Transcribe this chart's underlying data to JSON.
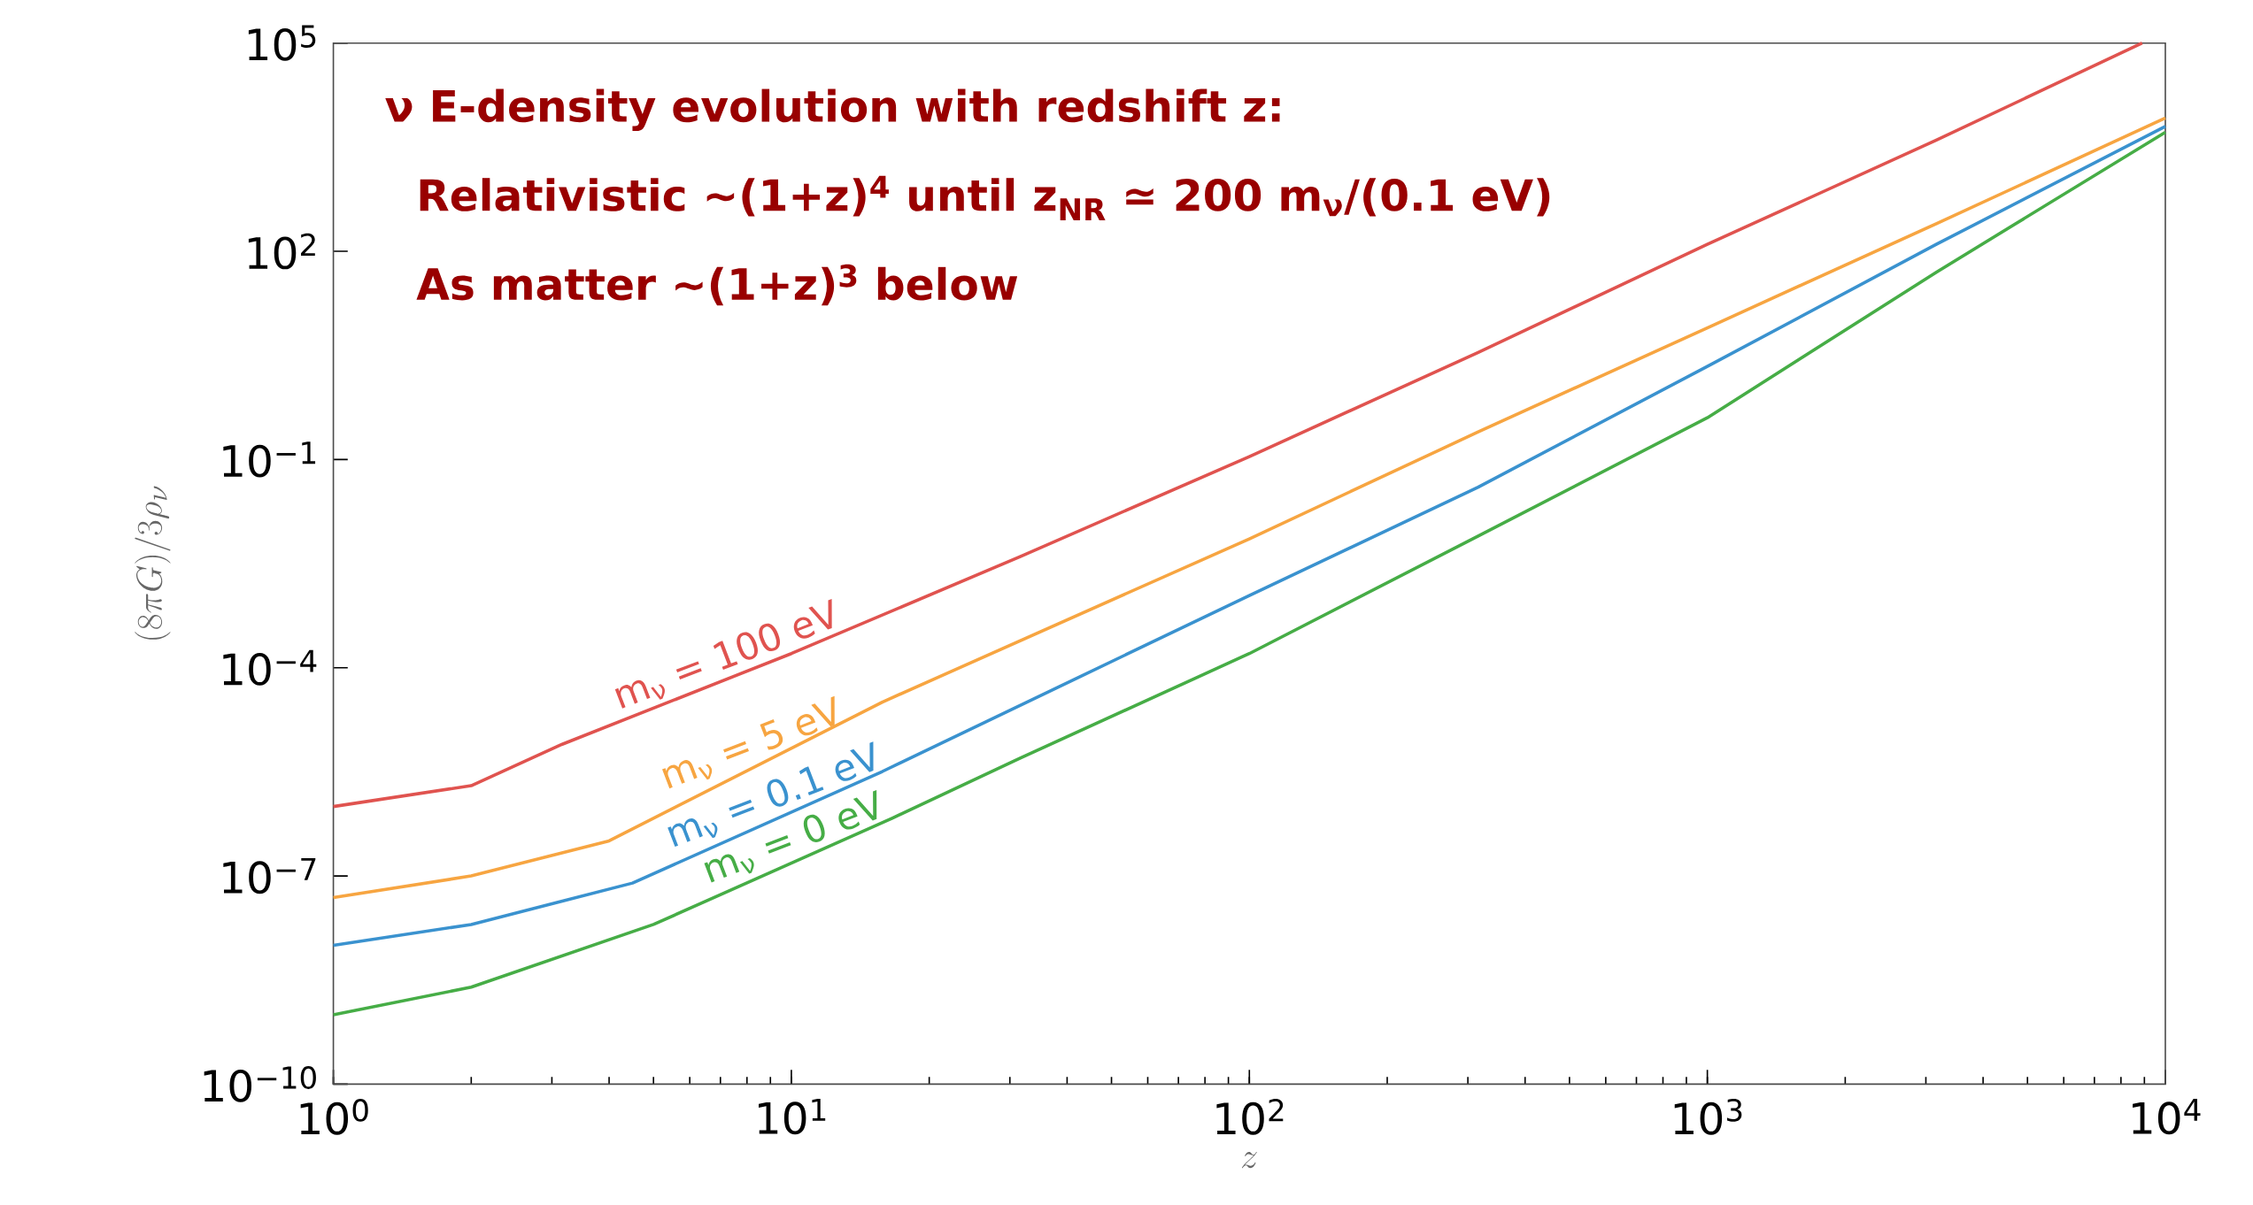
{
  "chart_data": {
    "type": "line",
    "log": "xy",
    "xlabel": "z",
    "ylabel": "(8\\pi G)/3\\rho_{\\nu}",
    "annotations": [
      "ν E-density evolution with redshift z:",
      "Relativistic ~(1+z)$^{4}$ until z$_{NR}$ ≃ 200 m$_{ν}$/(0.1 eV)",
      "As matter ~(1+z)$^{3}$ below"
    ],
    "xlim": [
      1,
      10000
    ],
    "ylim": [
      1e-10,
      100000
    ],
    "xticks": [
      {
        "value": 1,
        "label": "10$^{0}$"
      },
      {
        "value": 10,
        "label": "10$^{1}$"
      },
      {
        "value": 100,
        "label": "10$^{2}$"
      },
      {
        "value": 1000,
        "label": "10$^{3}$"
      },
      {
        "value": 10000,
        "label": "10$^{4}$"
      }
    ],
    "yticks": [
      {
        "value": 1e-10,
        "label": "10$^{−10}$"
      },
      {
        "value": 1e-07,
        "label": "10$^{−7}$"
      },
      {
        "value": 0.0001,
        "label": "10$^{−4}$"
      },
      {
        "value": 0.1,
        "label": "10$^{−1}$"
      },
      {
        "value": 100,
        "label": "10$^{2}$"
      },
      {
        "value": 100000,
        "label": "10$^{5}$"
      }
    ],
    "series": [
      {
        "name": "m$_{ν}$ = 100 eV",
        "color": "#e0534f",
        "x": [
          1,
          2,
          3.16,
          10,
          31.6,
          100,
          316,
          1000,
          3162,
          8900
        ],
        "values": [
          1e-06,
          2e-06,
          7.9e-06,
          0.00016,
          0.004,
          0.11,
          3.5,
          126,
          4000,
          100000
        ]
      },
      {
        "name": "m$_{ν}$ = 5 eV",
        "color": "#f7a541",
        "x": [
          1,
          2,
          4,
          15.8,
          100,
          316,
          1000,
          3162,
          10000
        ],
        "values": [
          4.9e-08,
          1e-07,
          3.2e-07,
          3.2e-05,
          0.0072,
          0.25,
          7.9,
          250,
          8300
        ]
      },
      {
        "name": "m$_{ν}$ = 0.1 eV",
        "color": "#3a92cf",
        "x": [
          1,
          2,
          4.5,
          15.8,
          100,
          316,
          1000,
          3162,
          10000
        ],
        "values": [
          1e-08,
          2e-08,
          7.9e-08,
          3.2e-06,
          0.0011,
          0.04,
          2.2,
          126,
          6300
        ]
      },
      {
        "name": "m$_{ν}$ = 0 eV",
        "color": "#46ad46",
        "x": [
          1,
          2,
          5,
          16.6,
          31.6,
          100,
          316,
          1000,
          3162,
          10000
        ],
        "values": [
          1e-09,
          2.5e-09,
          2e-08,
          6.8e-07,
          5e-06,
          0.00016,
          0.0079,
          0.4,
          50,
          5200
        ]
      }
    ]
  }
}
